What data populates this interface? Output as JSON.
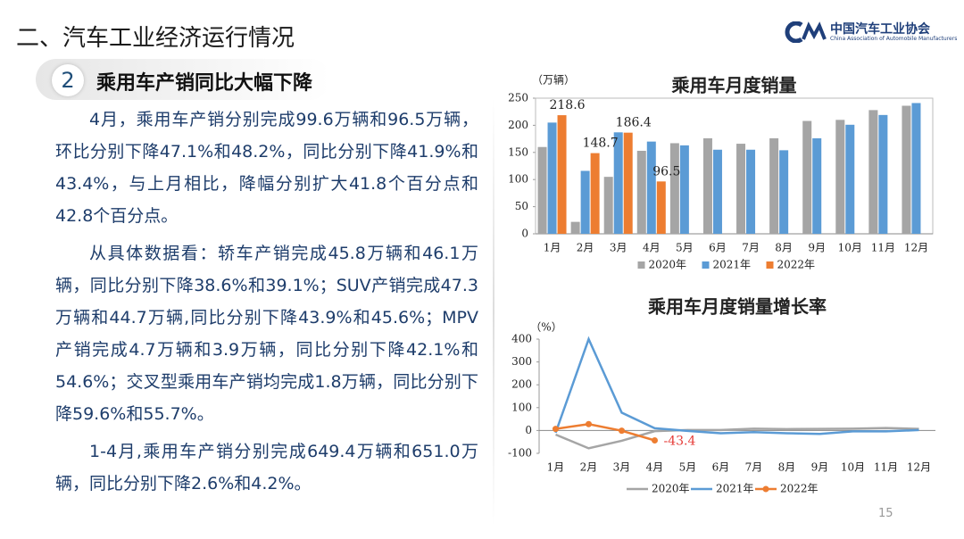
{
  "header": {
    "title": "二、汽车工业经济运行情况",
    "logo_cn": "中国汽车工业协会",
    "logo_en": "China Association of Automobile Manufacturers"
  },
  "section": {
    "number": "2",
    "title": "乘用车产销同比大幅下降"
  },
  "paragraphs": [
    "4月，乘用车产销分别完成99.6万辆和96.5万辆，环比分别下降47.1%和48.2%，同比分别下降41.9%和43.4%，与上月相比，降幅分别扩大41.8个百分点和42.8个百分点。",
    "从具体数据看：轿车产销完成45.8万辆和46.1万辆，同比分别下降38.6%和39.1%；SUV产销完成47.3万辆和44.7万辆,同比分别下降43.9%和45.6%；MPV产销完成4.7万辆和3.9万辆，同比分别下降42.1%和54.6%；交叉型乘用车产销均完成1.8万辆，同比分别下降59.6%和55.7%。",
    "1-4月,乘用车产销分别完成649.4万辆和651.0万辆，同比分别下降2.6%和4.2%。"
  ],
  "page_number": "15",
  "chart_data": [
    {
      "type": "bar",
      "title": "乘用车月度销量",
      "y_label": "（万辆）",
      "categories": [
        "1月",
        "2月",
        "3月",
        "4月",
        "5月",
        "6月",
        "7月",
        "8月",
        "9月",
        "10月",
        "11月",
        "12月"
      ],
      "series": [
        {
          "name": "2020年",
          "color": "#a5a5a5",
          "values": [
            160,
            22,
            105,
            153,
            167,
            176,
            166,
            176,
            208,
            210,
            228,
            236
          ]
        },
        {
          "name": "2021年",
          "color": "#5b9bd5",
          "values": [
            205,
            116,
            187,
            170,
            163,
            155,
            155,
            154,
            176,
            201,
            219,
            241
          ]
        },
        {
          "name": "2022年",
          "color": "#ed7d31",
          "data_labels": true,
          "values": [
            218.6,
            148.7,
            186.4,
            96.5,
            null,
            null,
            null,
            null,
            null,
            null,
            null,
            null
          ]
        }
      ],
      "ylim": [
        0,
        250
      ],
      "yticks": [
        0,
        50,
        100,
        150,
        200,
        250
      ],
      "legend": "bottom"
    },
    {
      "type": "line",
      "title": "乘用车月度销量增长率",
      "y_label": "（%）",
      "categories": [
        "1月",
        "2月",
        "3月",
        "4月",
        "5月",
        "6月",
        "7月",
        "8月",
        "9月",
        "10月",
        "11月",
        "12月"
      ],
      "series": [
        {
          "name": "2020年",
          "color": "#a5a5a5",
          "values": [
            -18,
            -78,
            -45,
            -3,
            2,
            2,
            8,
            6,
            7,
            8,
            11,
            7
          ]
        },
        {
          "name": "2021年",
          "color": "#5b9bd5",
          "values": [
            -10,
            400,
            78,
            10,
            -2,
            -12,
            -7,
            -12,
            -15,
            -4,
            -4,
            2
          ]
        },
        {
          "name": "2022年",
          "color": "#ed7d31",
          "marker": true,
          "data_labels": "last",
          "values": [
            7,
            28,
            -1,
            -43.4,
            null,
            null,
            null,
            null,
            null,
            null,
            null,
            null
          ]
        }
      ],
      "ylim": [
        -100,
        400
      ],
      "yticks": [
        -100,
        0,
        100,
        200,
        300,
        400
      ],
      "legend": "bottom"
    }
  ]
}
